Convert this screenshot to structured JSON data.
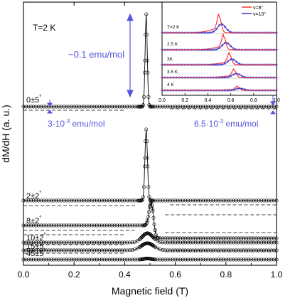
{
  "chart_data": [
    {
      "type": "line",
      "title": "",
      "xlabel": "Magnetic field (T)",
      "ylabel": "dM/dH (a. u.)",
      "xlim": [
        0,
        1.0
      ],
      "xticks": [
        "0.0",
        "0.2",
        "0.4",
        "0.6",
        "0.8",
        "1.0"
      ],
      "grid": false,
      "temperature_label": "T=2 K",
      "scale_annotations": [
        {
          "text": "~0.1 emu/mol"
        },
        {
          "text": "3·10",
          "sup": "-3",
          "tail": " emu/mol"
        },
        {
          "text": "6.5·10",
          "sup": "-3",
          "tail": " emu/mol"
        }
      ],
      "series": [
        {
          "name": "0±5°",
          "peak_x": 0.485,
          "peak_height": 1.0
        },
        {
          "name": "2±2°",
          "peak_x": 0.485,
          "peak_height": 0.7
        },
        {
          "name": "8±2°",
          "peak_x": 0.505,
          "peak_height": 0.12
        },
        {
          "name": "10±2°",
          "peak_x": 0.49,
          "peak_height": 0.06
        },
        {
          "name": "15±5°",
          "peak_x": 0.49,
          "peak_height": 0.05
        },
        {
          "name": "45±5°",
          "peak_x": 0.49,
          "peak_height": 0.0
        }
      ]
    },
    {
      "type": "line",
      "title": "",
      "xlim": [
        0,
        1.0
      ],
      "xticks": [
        "0.0",
        "0.2",
        "0.4",
        "0.6",
        "0.8",
        "1.0"
      ],
      "legend_position": "top-right",
      "legend": [
        {
          "name": "ν=8°",
          "color": "#ff3333"
        },
        {
          "name": "ν=10°",
          "color": "#3333cc"
        }
      ],
      "rows": [
        {
          "label": "T=2 K",
          "peak_x": 0.5
        },
        {
          "label": "2.5 K",
          "peak_x": 0.54
        },
        {
          "label": "3K",
          "peak_x": 0.59
        },
        {
          "label": "3.5 K",
          "peak_x": 0.63
        },
        {
          "label": "4 K",
          "peak_x": 0.66
        }
      ]
    }
  ]
}
